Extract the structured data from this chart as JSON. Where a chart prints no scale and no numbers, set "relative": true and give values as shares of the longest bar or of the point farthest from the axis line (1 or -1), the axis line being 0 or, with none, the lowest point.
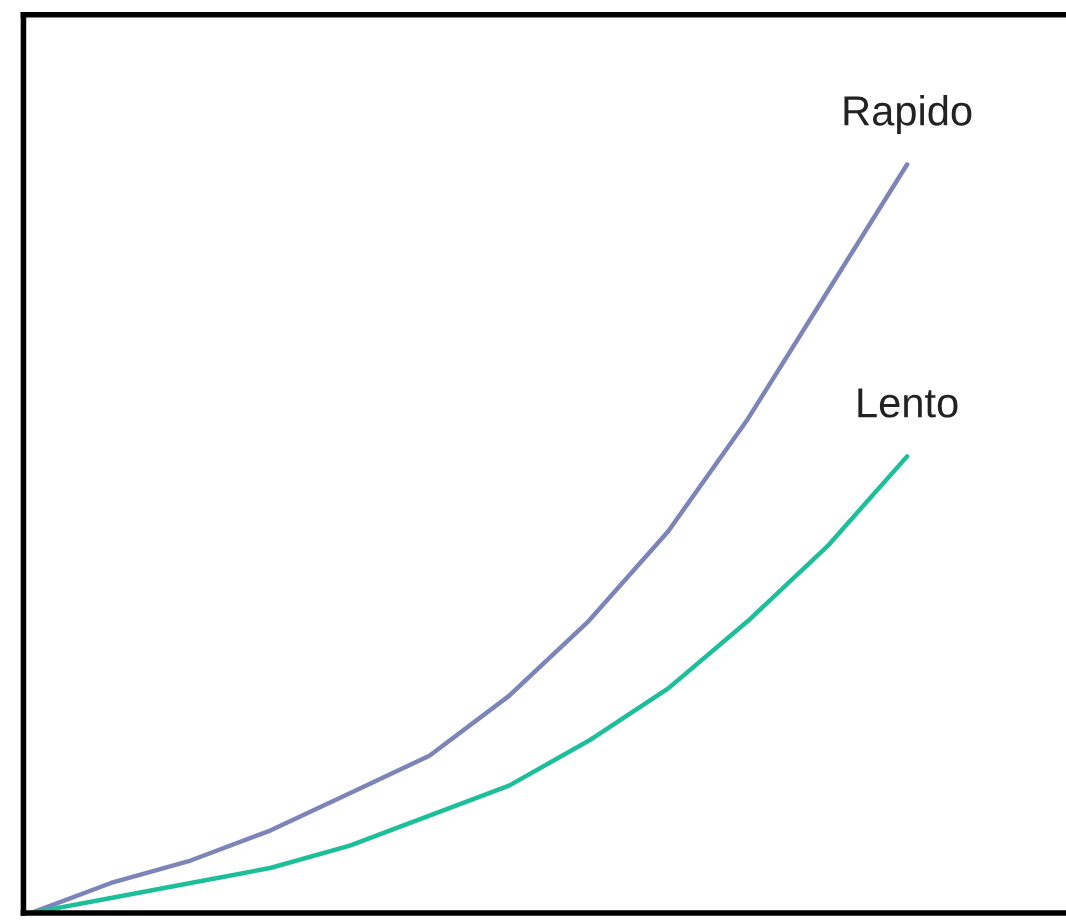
{
  "chart_data": {
    "type": "line",
    "relative": true,
    "categories": [
      null,
      null,
      null,
      null,
      null,
      null,
      null,
      null,
      null,
      null,
      null,
      null
    ],
    "series": [
      {
        "name": "Rapido",
        "color": "#7d84b8",
        "values": [
          0,
          0.04,
          0.07,
          0.11,
          0.16,
          0.21,
          0.29,
          0.39,
          0.51,
          0.66,
          0.83,
          1.0
        ]
      },
      {
        "name": "Lento",
        "color": "#1dbf9b",
        "values": [
          0,
          0.02,
          0.04,
          0.06,
          0.09,
          0.13,
          0.17,
          0.23,
          0.3,
          0.39,
          0.49,
          0.61
        ]
      }
    ],
    "marker": "none",
    "line_style": "solid"
  }
}
